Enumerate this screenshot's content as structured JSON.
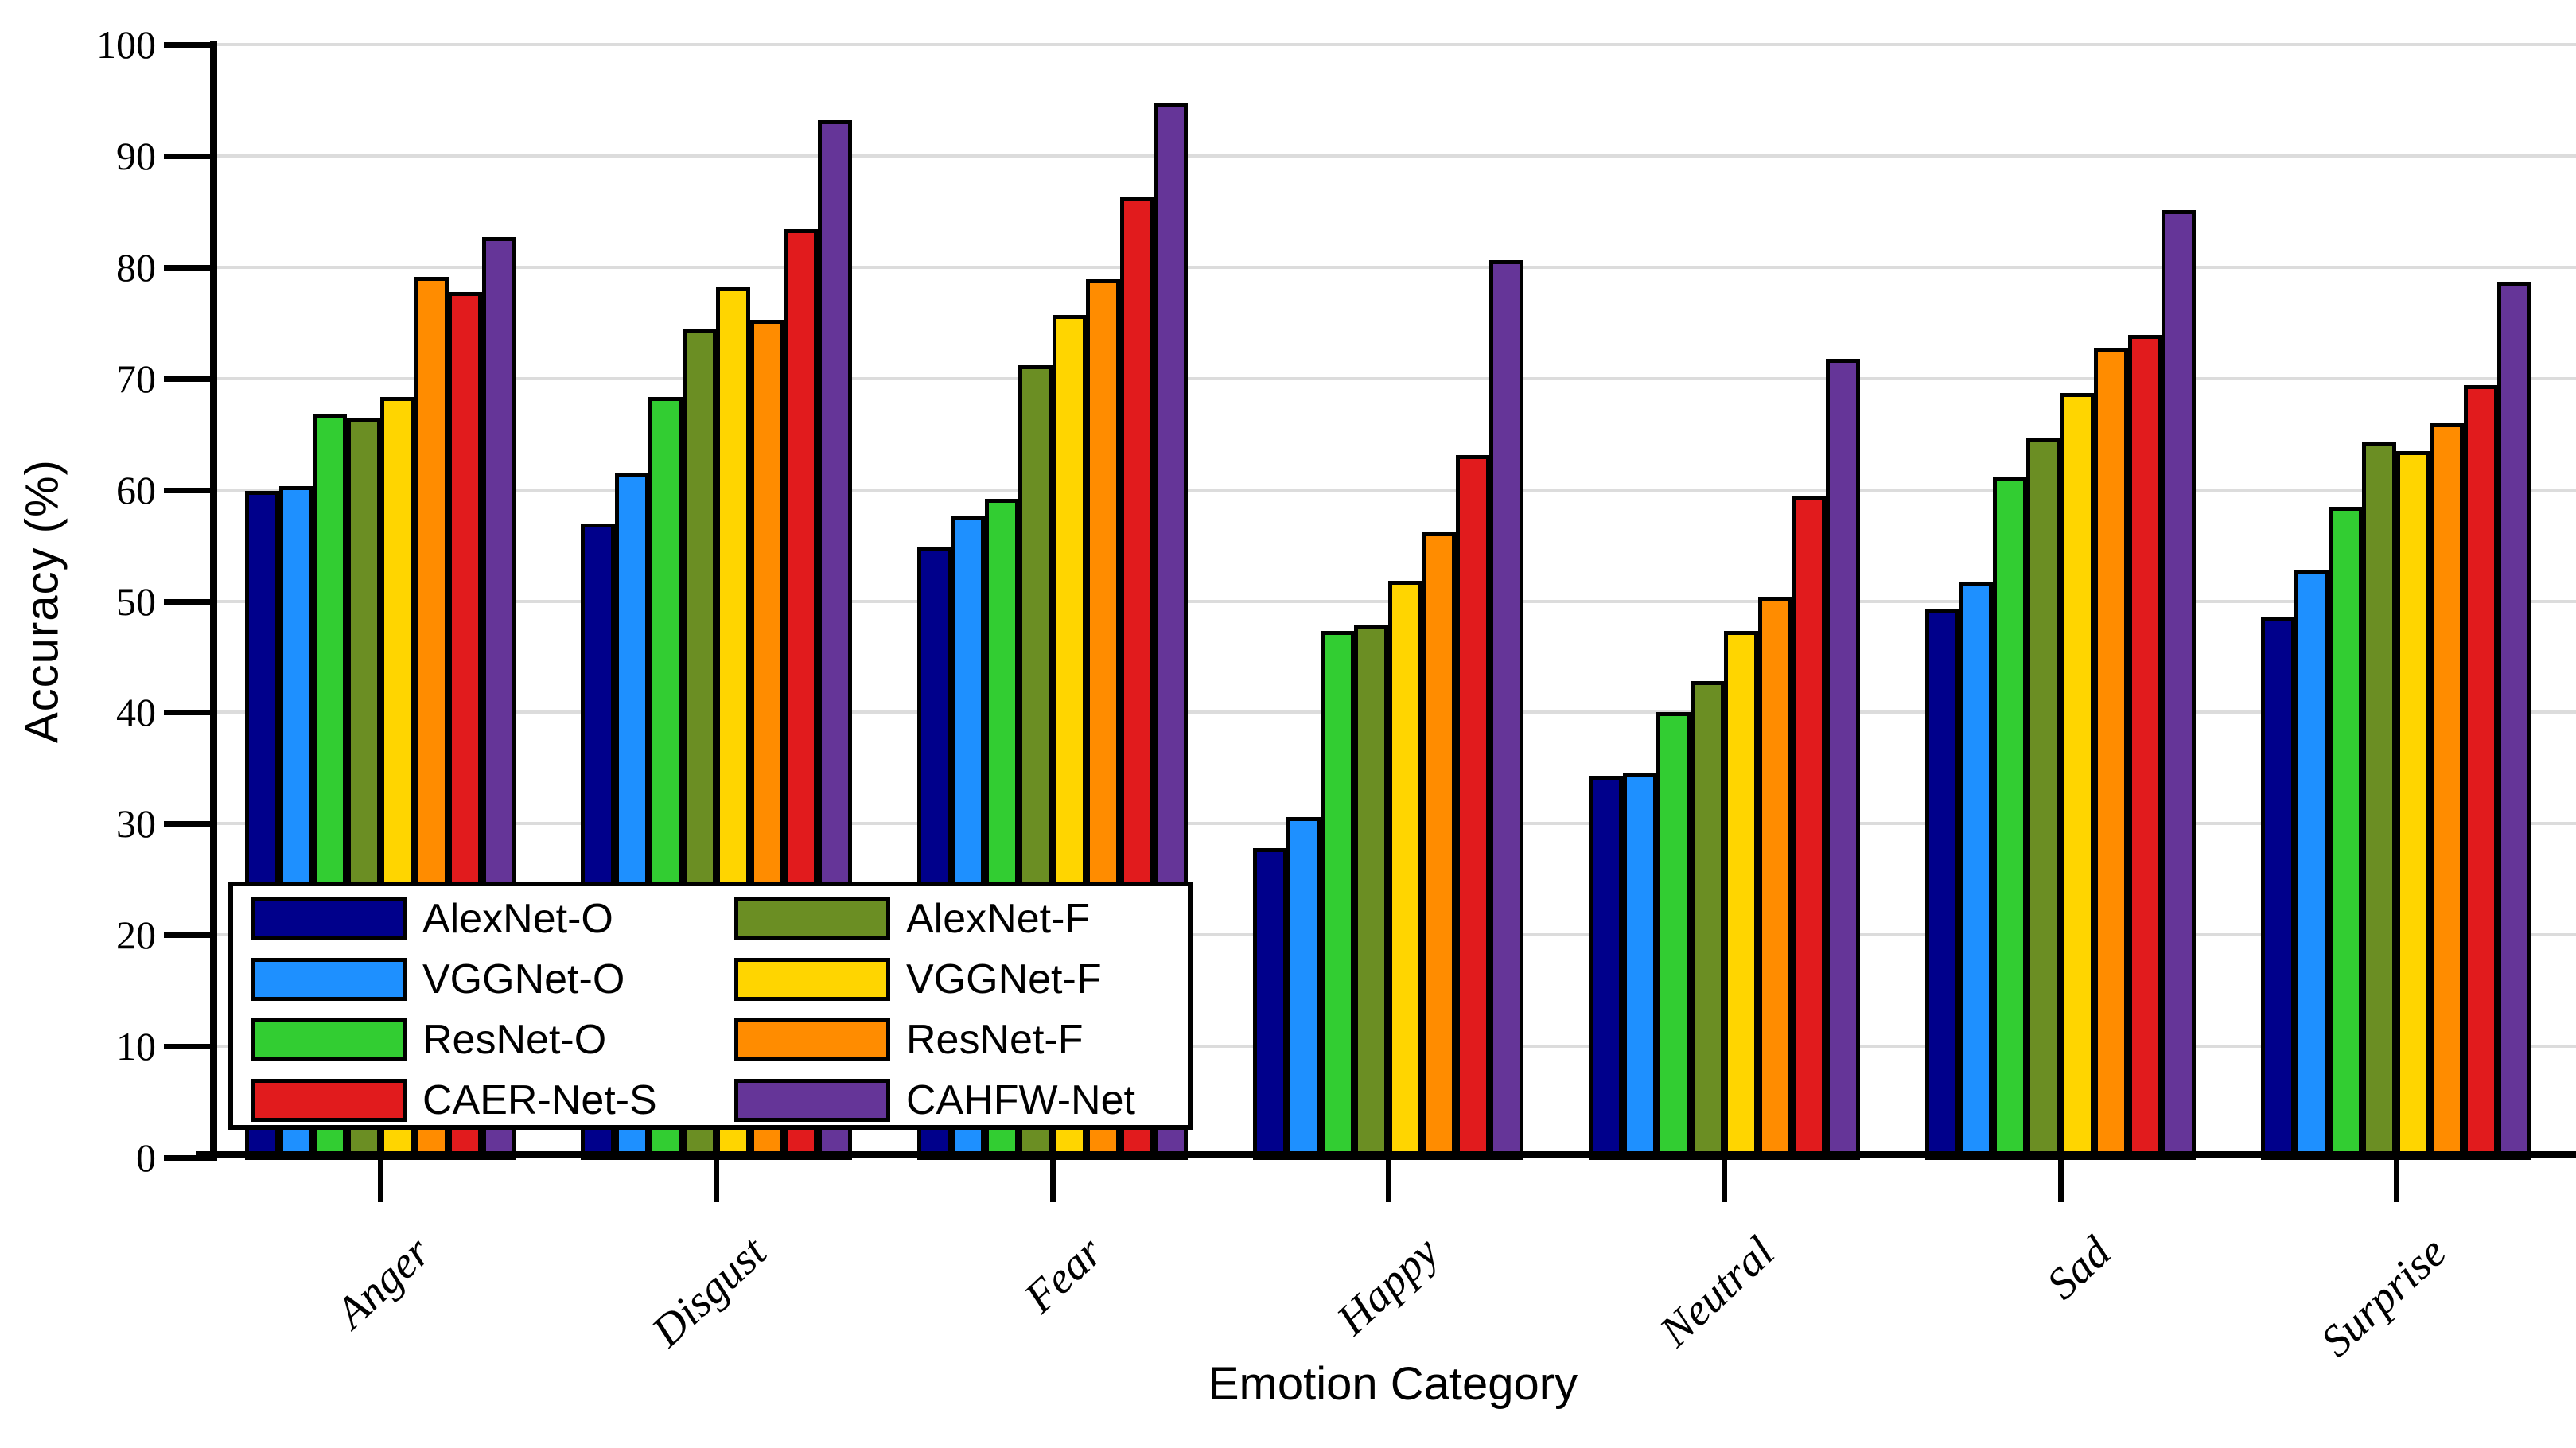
{
  "chart_data": {
    "type": "bar",
    "title": "",
    "xlabel": "Emotion Category",
    "ylabel": "Accuracy (%)",
    "ylim": [
      0,
      100
    ],
    "yticks": [
      0,
      10,
      20,
      30,
      40,
      50,
      60,
      70,
      80,
      90,
      100
    ],
    "grid": "horizontal gray lines at every 10, on",
    "legend_position": "lower left inside plot, 2 columns, white box with black border",
    "categories": [
      "Anger",
      "Disgust",
      "Fear",
      "Happy",
      "Neutral",
      "Sad",
      "Surprise"
    ],
    "series": [
      {
        "name": "AlexNet-O",
        "color": "#00008B",
        "values": [
          59.9,
          57.0,
          54.8,
          27.8,
          34.3,
          49.3,
          48.6
        ]
      },
      {
        "name": "VGGNet-O",
        "color": "#1E90FF",
        "values": [
          60.3,
          61.5,
          57.7,
          30.6,
          34.6,
          51.7,
          52.8
        ]
      },
      {
        "name": "ResNet-O",
        "color": "#32CD32",
        "values": [
          66.8,
          68.3,
          59.2,
          47.3,
          40.0,
          61.1,
          58.5
        ]
      },
      {
        "name": "AlexNet-F",
        "color": "#6B8E23",
        "values": [
          66.4,
          74.4,
          71.2,
          47.9,
          42.8,
          64.6,
          64.3
        ]
      },
      {
        "name": "VGGNet-F",
        "color": "#FFD500",
        "values": [
          68.3,
          78.2,
          75.7,
          51.8,
          47.3,
          68.7,
          63.5
        ]
      },
      {
        "name": "ResNet-F",
        "color": "#FF8C00",
        "values": [
          79.1,
          75.3,
          78.9,
          56.2,
          50.3,
          72.7,
          66.0
        ]
      },
      {
        "name": "CAER-Net-S",
        "color": "#E11B1D",
        "values": [
          77.8,
          83.4,
          86.3,
          63.1,
          59.4,
          73.9,
          69.4
        ]
      },
      {
        "name": "CAHFW-Net",
        "color": "#653598",
        "values": [
          82.7,
          93.2,
          94.7,
          80.6,
          71.8,
          85.1,
          78.6
        ]
      }
    ],
    "legend_columns": [
      [
        "AlexNet-O",
        "VGGNet-O",
        "ResNet-O",
        "CAER-Net-S"
      ],
      [
        "AlexNet-F",
        "VGGNet-F",
        "ResNet-F",
        "CAHFW-Net"
      ]
    ]
  },
  "colors": {
    "background": "#FFFFFF",
    "gridline": "#DCDCDC",
    "axis": "#000000",
    "bar_border": "#000000"
  }
}
